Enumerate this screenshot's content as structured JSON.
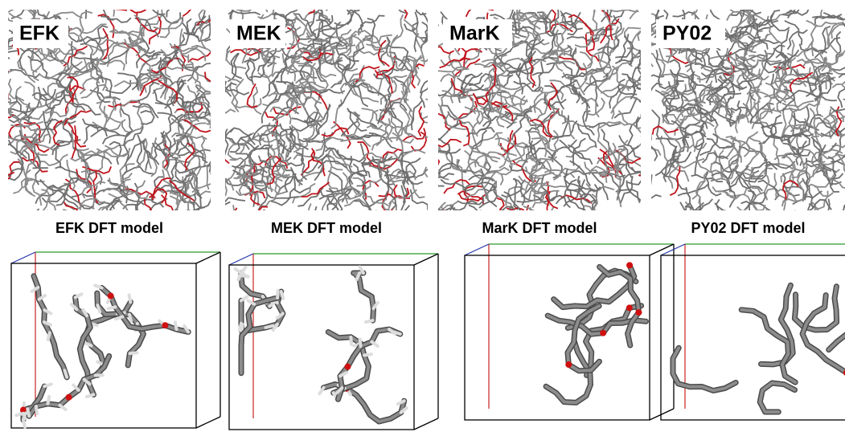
{
  "panels": [
    {
      "label": "EFK",
      "caption": "EFK DFT model"
    },
    {
      "label": "MEK",
      "caption": "MEK DFT model"
    },
    {
      "label": "MarK",
      "caption": "MarK DFT model"
    },
    {
      "label": "PY02",
      "caption": "PY02 DFT model"
    }
  ]
}
